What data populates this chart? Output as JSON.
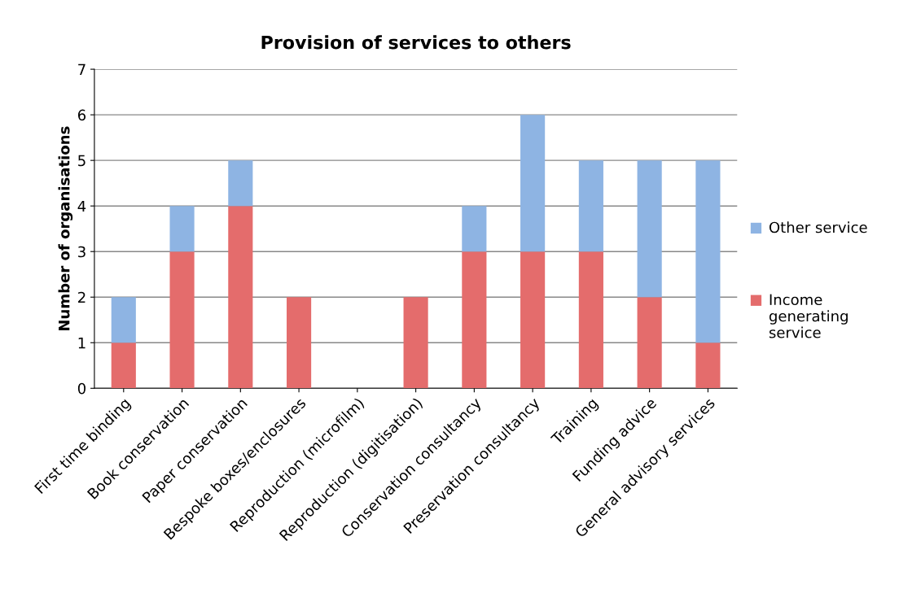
{
  "chart_data": {
    "type": "bar",
    "title": "Provision of services to others",
    "ylabel": "Number of organisations",
    "categories": [
      "First time binding",
      "Book conservation",
      "Paper conservation",
      "Bespoke boxes/enclosures",
      "Reproduction (microfilm)",
      "Reproduction (digitisation)",
      "Conservation consultancy",
      "Preservation consultancy",
      "Training",
      "Funding advice",
      "General advisory services"
    ],
    "series": [
      {
        "name": "Income generating service",
        "color": "#e46c6c",
        "values": [
          1,
          3,
          4,
          2,
          0,
          2,
          3,
          3,
          3,
          2,
          1
        ]
      },
      {
        "name": "Other service",
        "color": "#8eb4e3",
        "values": [
          1,
          1,
          1,
          0,
          0,
          0,
          1,
          3,
          2,
          3,
          4
        ]
      }
    ],
    "stacked": true,
    "ylim": [
      0,
      7
    ],
    "yticks": [
      0,
      1,
      2,
      3,
      4,
      5,
      6,
      7
    ],
    "grid": "y",
    "legend": "right"
  }
}
